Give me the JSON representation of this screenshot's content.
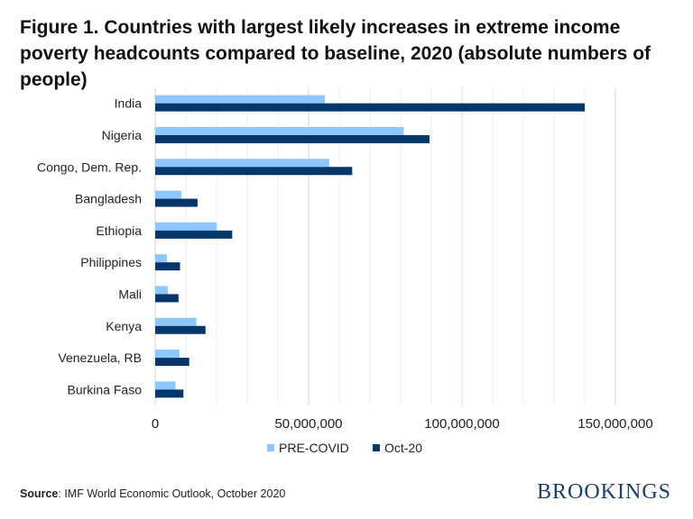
{
  "title": "Figure 1. Countries with largest likely increases in extreme income poverty headcounts compared to baseline, 2020 (absolute numbers of people)",
  "source_label": "Source",
  "source_text": ": IMF World Economic Outlook, October 2020",
  "logo": "BROOKINGS",
  "chart_data": {
    "type": "bar",
    "orientation": "horizontal",
    "categories": [
      "India",
      "Nigeria",
      "Congo, Dem. Rep.",
      "Bangladesh",
      "Ethiopia",
      "Philippines",
      "Mali",
      "Kenya",
      "Venezuela, RB",
      "Burkina Faso"
    ],
    "series": [
      {
        "name": "PRE-COVID",
        "color": "#8ec6ff",
        "values": [
          55300000,
          81000000,
          56700000,
          8500000,
          20100000,
          3800000,
          4100000,
          13400000,
          7900000,
          6600000
        ]
      },
      {
        "name": "Oct-20",
        "color": "#06376a",
        "values": [
          140000000,
          89400000,
          64200000,
          13800000,
          25100000,
          8100000,
          7600000,
          16400000,
          11100000,
          9200000
        ]
      }
    ],
    "xlim": [
      0,
      150000000
    ],
    "xticks": [
      0,
      50000000,
      100000000,
      150000000
    ],
    "xtick_labels": [
      "0",
      "50,000,000",
      "100,000,000",
      "150,000,000"
    ],
    "grid": true,
    "legend_placement": "bottom"
  }
}
